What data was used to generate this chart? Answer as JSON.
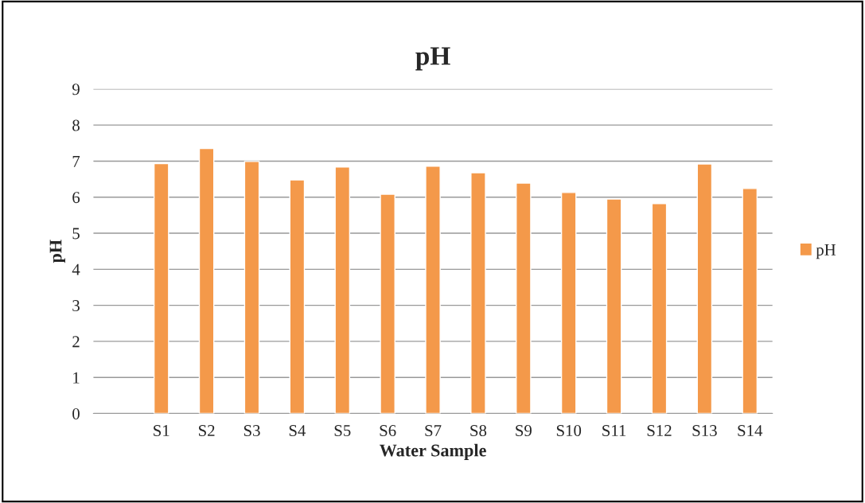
{
  "chart_data": {
    "type": "bar",
    "title": "pH",
    "xlabel": "Water Sample",
    "ylabel": "pH",
    "categories": [
      null,
      "S1",
      "S2",
      "S3",
      "S4",
      "S5",
      "S6",
      "S7",
      "S8",
      "S9",
      "S10",
      "S11",
      "S12",
      "S13",
      "S14"
    ],
    "series": [
      {
        "name": "pH",
        "color": "#f4994a",
        "values": [
          null,
          6.93,
          7.35,
          6.99,
          6.48,
          6.84,
          6.08,
          6.86,
          6.68,
          6.39,
          6.13,
          5.95,
          5.82,
          6.92,
          6.24
        ]
      }
    ],
    "ylim": [
      0,
      9
    ],
    "yticks": [
      0,
      1,
      2,
      3,
      4,
      5,
      6,
      7,
      8,
      9
    ],
    "grid": "y",
    "legend": "right"
  }
}
